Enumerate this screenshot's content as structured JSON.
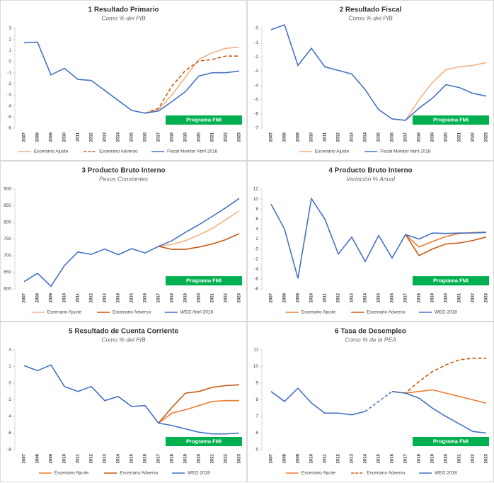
{
  "chart_data": [
    {
      "type": "line",
      "title": "1 Resultado Primario",
      "subtitle": "Como % del PIB",
      "categories": [
        "2007",
        "2008",
        "2009",
        "2010",
        "2011",
        "2012",
        "2013",
        "2014",
        "2015",
        "2016",
        "2017",
        "2018",
        "2019",
        "2020",
        "2021",
        "2022",
        "2023"
      ],
      "series": [
        {
          "name": "Escenario Ajuste",
          "color": "#f4b183",
          "dashed": false,
          "values": [
            null,
            null,
            null,
            null,
            null,
            null,
            null,
            null,
            null,
            -4.65,
            -4.3,
            -3.0,
            -1.4,
            0.2,
            0.8,
            1.2,
            1.3
          ]
        },
        {
          "name": "Escenario Adverso",
          "color": "#c55a11",
          "dashed": true,
          "values": [
            null,
            null,
            null,
            null,
            null,
            null,
            null,
            null,
            null,
            -4.65,
            -4.2,
            -2.2,
            -0.8,
            0.05,
            0.2,
            0.5,
            0.5
          ]
        },
        {
          "name": "Fiscal Monitor Abril 2018",
          "color": "#4472c4",
          "dashed": false,
          "values": [
            1.7,
            1.75,
            -1.2,
            -0.6,
            -1.6,
            -1.7,
            -2.6,
            -3.5,
            -4.4,
            -4.65,
            -4.45,
            -3.6,
            -2.7,
            -1.3,
            -1.0,
            -1.0,
            -0.85
          ]
        }
      ],
      "ylim": [
        -6,
        3
      ],
      "yticks": [
        -6,
        -5,
        -4,
        -3,
        -2,
        -1,
        0,
        1,
        2,
        3
      ],
      "annotation": "Programa FMI"
    },
    {
      "type": "line",
      "title": "2 Resultado Fiscal",
      "subtitle": "Como % del PIB",
      "categories": [
        "2007",
        "2008",
        "2009",
        "2010",
        "2011",
        "2012",
        "2013",
        "2014",
        "2015",
        "2016",
        "2017",
        "2018",
        "2019",
        "2020",
        "2021",
        "2022",
        "2023"
      ],
      "series": [
        {
          "name": "Escenario Ajuste",
          "color": "#f4b183",
          "dashed": false,
          "values": [
            null,
            null,
            null,
            null,
            null,
            null,
            null,
            null,
            null,
            -6.35,
            -6.45,
            -5.0,
            -3.8,
            -2.9,
            -2.7,
            -2.6,
            -2.4
          ]
        },
        {
          "name": "Fiscal Monitor Abril 2018",
          "color": "#4472c4",
          "dashed": false,
          "values": [
            -0.1,
            0.25,
            -2.6,
            -1.4,
            -2.7,
            -2.95,
            -3.2,
            -4.3,
            -5.7,
            -6.35,
            -6.45,
            -5.6,
            -4.9,
            -3.95,
            -4.15,
            -4.55,
            -4.75
          ]
        }
      ],
      "ylim": [
        -7,
        0
      ],
      "yticks": [
        -7,
        -6,
        -5,
        -4,
        -3,
        -2,
        -1,
        0
      ],
      "annotation": "Programa FMI"
    },
    {
      "type": "line",
      "title": "3 Producto Bruto Interno",
      "subtitle": "Pesos Constantes",
      "categories": [
        "2007",
        "2008",
        "2009",
        "2010",
        "2011",
        "2012",
        "2013",
        "2014",
        "2015",
        "2016",
        "2017",
        "2018",
        "2019",
        "2020",
        "2021",
        "2022",
        "2023"
      ],
      "series": [
        {
          "name": "Escenario Ajuste",
          "color": "#f4b183",
          "dashed": false,
          "values": [
            null,
            null,
            null,
            null,
            null,
            null,
            null,
            null,
            null,
            null,
            728,
            734,
            745,
            762,
            782,
            808,
            835
          ]
        },
        {
          "name": "Escenario Adverso",
          "color": "#c55a11",
          "dashed": false,
          "values": [
            null,
            null,
            null,
            null,
            null,
            null,
            null,
            null,
            null,
            null,
            728,
            719,
            719,
            726,
            735,
            748,
            766
          ]
        },
        {
          "name": "WEO Abril 2018",
          "color": "#4472c4",
          "dashed": false,
          "values": [
            622,
            647,
            608,
            670,
            711,
            704,
            720,
            703,
            721,
            708,
            728,
            745,
            770,
            793,
            818,
            844,
            872
          ]
        }
      ],
      "ylim": [
        600,
        900
      ],
      "yticks": [
        600,
        650,
        700,
        750,
        800,
        850,
        900
      ],
      "annotation": "Programa FMI"
    },
    {
      "type": "line",
      "title": "4 Producto Bruto Interno",
      "subtitle": "Variación % Anual",
      "categories": [
        "2007",
        "2008",
        "2009",
        "2010",
        "2011",
        "2012",
        "2013",
        "2014",
        "2015",
        "2016",
        "2017",
        "2018",
        "2019",
        "2020",
        "2021",
        "2022",
        "2023"
      ],
      "series": [
        {
          "name": "Escenario Ajuste",
          "color": "#ed7d31",
          "dashed": false,
          "values": [
            null,
            null,
            null,
            null,
            null,
            null,
            null,
            null,
            null,
            null,
            2.9,
            0.4,
            1.5,
            2.5,
            3.1,
            3.3,
            3.4
          ]
        },
        {
          "name": "Escenario Adverso",
          "color": "#c55a11",
          "dashed": false,
          "values": [
            null,
            null,
            null,
            null,
            null,
            null,
            null,
            null,
            null,
            null,
            2.9,
            -1.3,
            0.0,
            1.0,
            1.2,
            1.7,
            2.4
          ]
        },
        {
          "name": "WEO 2018",
          "color": "#4472c4",
          "dashed": false,
          "values": [
            9.0,
            4.0,
            -5.9,
            10.1,
            6.0,
            -1.0,
            2.4,
            -2.5,
            2.7,
            -1.8,
            2.9,
            2.0,
            3.2,
            3.1,
            3.2,
            3.2,
            3.3
          ]
        }
      ],
      "ylim": [
        -8,
        12
      ],
      "yticks": [
        -8,
        -6,
        -4,
        -2,
        0,
        2,
        4,
        6,
        8,
        10,
        12
      ],
      "annotation": "Programa FMI"
    },
    {
      "type": "line",
      "title": "5 Resultado de Cuenta Corriente",
      "subtitle": "Como % del PIB",
      "categories": [
        "2007",
        "2008",
        "2009",
        "2010",
        "2011",
        "2012",
        "2013",
        "2014",
        "2015",
        "2016",
        "2017",
        "2018",
        "2019",
        "2020",
        "2021",
        "2022",
        "2023"
      ],
      "series": [
        {
          "name": "Escenario Ajuste",
          "color": "#ed7d31",
          "dashed": false,
          "values": [
            null,
            null,
            null,
            null,
            null,
            null,
            null,
            null,
            null,
            null,
            -4.8,
            -3.6,
            -3.2,
            -2.7,
            -2.2,
            -2.1,
            -2.1
          ]
        },
        {
          "name": "Escenario Adverso",
          "color": "#c55a11",
          "dashed": false,
          "values": [
            null,
            null,
            null,
            null,
            null,
            null,
            null,
            null,
            null,
            null,
            -4.8,
            -2.9,
            -1.2,
            -1.0,
            -0.5,
            -0.3,
            -0.2
          ]
        },
        {
          "name": "WEO 2018",
          "color": "#4472c4",
          "dashed": false,
          "values": [
            2.1,
            1.5,
            2.2,
            -0.4,
            -1.0,
            -0.4,
            -2.1,
            -1.6,
            -2.8,
            -2.7,
            -4.8,
            -5.1,
            -5.5,
            -5.9,
            -6.1,
            -6.1,
            -6.0
          ]
        }
      ],
      "ylim": [
        -8,
        4
      ],
      "yticks": [
        -8,
        -6,
        -4,
        -2,
        0,
        2,
        4
      ],
      "annotation": "Programa FMI"
    },
    {
      "type": "line",
      "title": "6 Tasa de Desempleo",
      "subtitle": "Como % de la PEA",
      "categories": [
        "2007",
        "2008",
        "2009",
        "2010",
        "2011",
        "2012",
        "2013",
        "2014",
        "2015",
        "2016",
        "2017",
        "2018",
        "2019",
        "2020",
        "2021",
        "2022",
        "2023"
      ],
      "series": [
        {
          "name": "Escenario Ajuste",
          "color": "#ed7d31",
          "dashed": false,
          "values": [
            null,
            null,
            null,
            null,
            null,
            null,
            null,
            null,
            null,
            8.5,
            8.4,
            8.5,
            8.6,
            8.4,
            8.2,
            8.0,
            7.8
          ]
        },
        {
          "name": "Escenario Adverso",
          "color": "#c55a11",
          "dashed": true,
          "values": [
            null,
            null,
            null,
            null,
            null,
            null,
            null,
            null,
            null,
            8.5,
            8.4,
            9.1,
            9.7,
            10.1,
            10.4,
            10.5,
            10.5
          ]
        },
        {
          "name": "WEO 2018",
          "color": "#4472c4",
          "dashed": false,
          "gap_style": "dashed",
          "values": [
            8.5,
            7.9,
            8.7,
            7.8,
            7.2,
            7.2,
            7.1,
            7.3,
            null,
            8.5,
            8.4,
            8.1,
            7.5,
            7.0,
            6.55,
            6.1,
            6.0
          ]
        }
      ],
      "ylim": [
        5,
        11
      ],
      "yticks": [
        5,
        6,
        7,
        8,
        9,
        10,
        11
      ],
      "annotation": "Programa FMI"
    }
  ]
}
